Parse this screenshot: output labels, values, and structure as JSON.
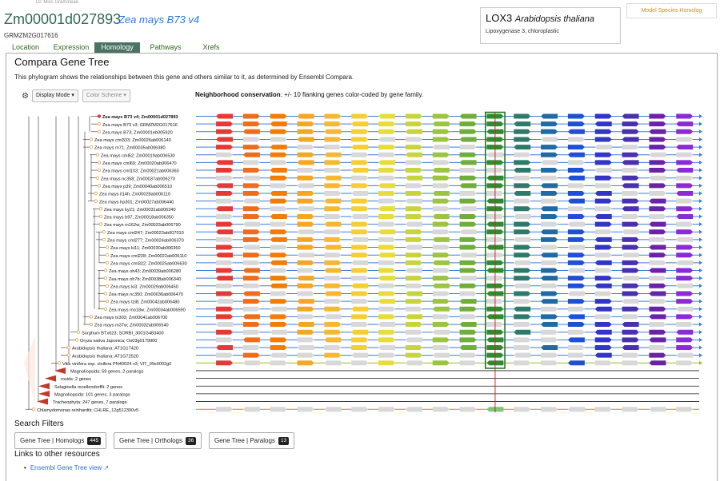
{
  "header": {
    "top_note": "Dr. Misc Gramineae",
    "gene_id": "Zm00001d027893",
    "species": "Zea mays B73 v4",
    "alt_id": "GRMZM2G017616"
  },
  "tabs": [
    {
      "label": "Location"
    },
    {
      "label": "Expression"
    },
    {
      "label": "Homology",
      "active": true
    },
    {
      "label": "Pathways"
    },
    {
      "label": "Xrefs"
    }
  ],
  "homolog_card": {
    "gene": "LOX3",
    "species": "Arabidopsis thaliana",
    "description": "Lipoxygenase 3, chloroplastic",
    "button_label": "Model Species Homolog"
  },
  "panel": {
    "title": "Compara Gene Tree",
    "description": "This phylogram shows the relationships between this gene and others similar to it, as determined by Ensembl Compara.",
    "display_mode_label": "Display Mode",
    "color_scheme_label": "Color Scheme",
    "neighborhood_label": "Neighborhood conservation",
    "neighborhood_text": ": +/- 10 flanking genes color-coded by gene family."
  },
  "tree": {
    "leaves": [
      {
        "label": "Zea mays B73 v4; Zm00001d027893",
        "bold": true,
        "kind": "self"
      },
      {
        "label": "Zea mays B73 v3; GRMZM2G017616",
        "kind": "gene"
      },
      {
        "label": "Zea mays B73; Zm00001eb005920",
        "kind": "gene"
      },
      {
        "label": "Zea mays cml333; Zm00026ab006140",
        "kind": "gene"
      },
      {
        "label": "Zea mays m71; Zm00035ab006380",
        "kind": "gene"
      },
      {
        "label": "Zea mays cml52; Zm00019ab006530",
        "kind": "gene"
      },
      {
        "label": "Zea mays cml69; Zm00020ab006470",
        "kind": "gene"
      },
      {
        "label": "Zea mays cml103; Zm00021ab006360",
        "kind": "gene"
      },
      {
        "label": "Zea mays nc358; Zm00037ab006270",
        "kind": "gene"
      },
      {
        "label": "Zea mays p39; Zm00040ab006510",
        "kind": "gene"
      },
      {
        "label": "Zea mays il14h; Zm00028ab006110",
        "kind": "gene"
      },
      {
        "label": "Zea mays hp301; Zm00027ab006440",
        "kind": "gene"
      },
      {
        "label": "Zea mays ky21; Zm00031ab006340",
        "kind": "gene"
      },
      {
        "label": "Zea mays b97; Zm00018ab006350",
        "kind": "gene"
      },
      {
        "label": "Zea mays m162w; Zm00033ab006790",
        "kind": "gene"
      },
      {
        "label": "Zea mays cml247; Zm00023ab007010",
        "kind": "gene"
      },
      {
        "label": "Zea mays cml277; Zm00024ab006370",
        "kind": "gene"
      },
      {
        "label": "Zea mays ki11; Zm00030ab006360",
        "kind": "gene"
      },
      {
        "label": "Zea mays cml228; Zm00022ab006110",
        "kind": "gene"
      },
      {
        "label": "Zea mays cml322; Zm00025ab006630",
        "kind": "gene"
      },
      {
        "label": "Zea mays oh43; Zm00039ab006280",
        "kind": "gene"
      },
      {
        "label": "Zea mays oh7b; Zm00038ab006340",
        "kind": "gene"
      },
      {
        "label": "Zea mays ki3; Zm00029ab006450",
        "kind": "gene"
      },
      {
        "label": "Zea mays nc350; Zm00036ab006470",
        "kind": "gene"
      },
      {
        "label": "Zea mays tzi8; Zm00042ab006480",
        "kind": "gene"
      },
      {
        "label": "Zea mays mo18w; Zm00034ab006590",
        "kind": "gene"
      },
      {
        "label": "Zea mays tx303; Zm00041ab006700",
        "kind": "gene"
      },
      {
        "label": "Zea mays m37w; Zm00032ab006540",
        "kind": "gene"
      },
      {
        "label": "Sorghum BTx623; SORBI_3001G483400",
        "kind": "gene"
      },
      {
        "label": "Oryza sativa Japonica; Os03g0179900",
        "kind": "gene"
      },
      {
        "label": "Arabidopsis thaliana; AT1G17420",
        "kind": "gene"
      },
      {
        "label": "Arabidopsis thaliana; AT1G72520",
        "kind": "gene"
      },
      {
        "label": "Vitis vinifera ssp. vinifera PN40024 v3; VIT_09s0002g0",
        "kind": "gene"
      },
      {
        "label": "Magnoliopsida: 59 genes, 2 paralogs",
        "kind": "clade"
      },
      {
        "label": "rosids: 2 genes",
        "kind": "clade"
      },
      {
        "label": "Selaginella moellendorffii: 2 genes",
        "kind": "clade"
      },
      {
        "label": "Magnoliopsida: 101 genes, 3 paralogs",
        "kind": "clade"
      },
      {
        "label": "Tracheophyta: 247 genes, 7 paralogs",
        "kind": "clade"
      },
      {
        "label": "Chlamydomonas reinhardtii; CHLRE_12g512300v5",
        "kind": "gene"
      }
    ]
  },
  "neighborhood_colors": [
    "#e53935",
    "#ef6c1a",
    "#f57c00",
    "#f5a623",
    "#f7b733",
    "#f5cf32",
    "#e8dc3a",
    "#c8d43c",
    "#9cc43f",
    "#6fae38",
    "#2e8b2e",
    "#2d7a6a",
    "#1f6aa5",
    "#1f4fd6",
    "#3235c8",
    "#4a2fb0",
    "#6a22a8",
    "#8b2bd6"
  ],
  "search_filters": {
    "title": "Search Filters",
    "buttons": [
      {
        "label": "Gene Tree | Homologs",
        "count": "445"
      },
      {
        "label": "Gene Tree | Orthologs",
        "count": "36"
      },
      {
        "label": "Gene Tree | Paralogs",
        "count": "13"
      }
    ]
  },
  "links": {
    "title": "Links to other resources",
    "ensembl_label": "Ensembl Gene Tree view"
  }
}
